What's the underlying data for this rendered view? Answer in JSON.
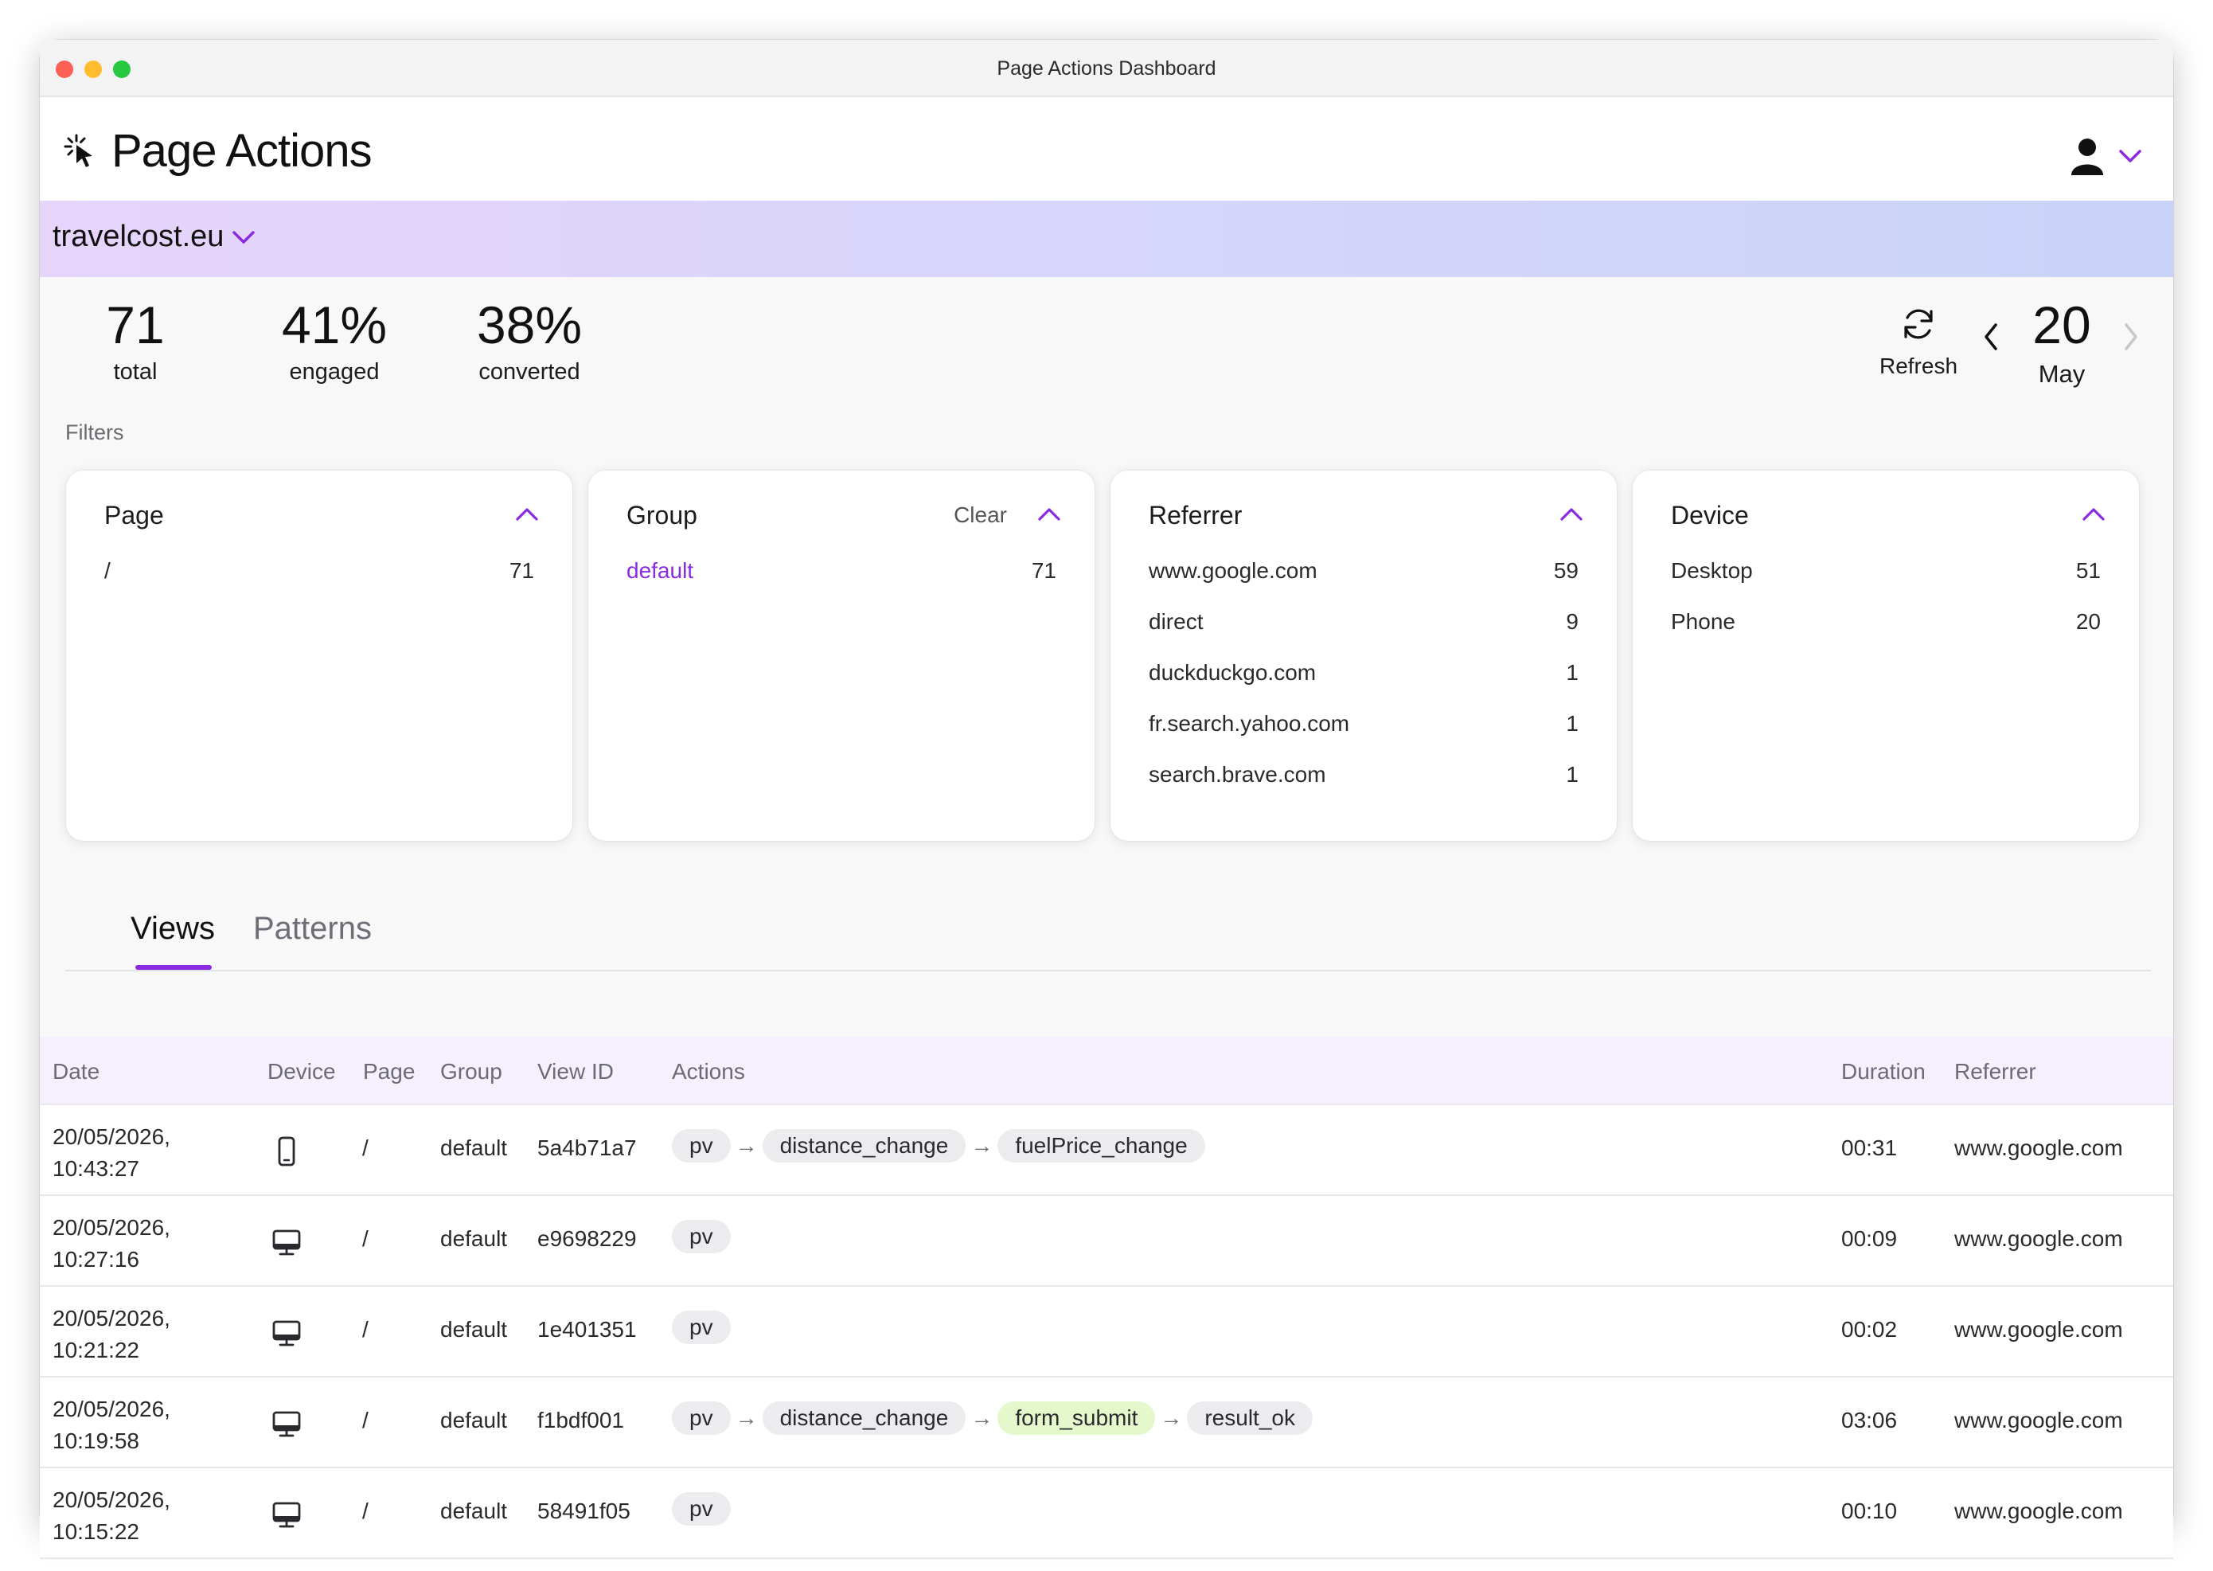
{
  "window": {
    "title": "Page Actions Dashboard"
  },
  "app": {
    "title": "Page Actions",
    "logo_icon": "cursor-click-icon",
    "user_icon": "user-icon"
  },
  "site": {
    "name": "travelcost.eu"
  },
  "stats": [
    {
      "value": "71",
      "label": "total"
    },
    {
      "value": "41%",
      "label": "engaged"
    },
    {
      "value": "38%",
      "label": "converted"
    }
  ],
  "controls": {
    "refresh_label": "Refresh",
    "date_day": "20",
    "date_month": "May"
  },
  "filters": {
    "label": "Filters",
    "cards": [
      {
        "title": "Page",
        "clear": "",
        "rows": [
          {
            "key": "/",
            "count": "71"
          }
        ]
      },
      {
        "title": "Group",
        "clear": "Clear",
        "rows": [
          {
            "key": "default",
            "count": "71"
          }
        ]
      },
      {
        "title": "Referrer",
        "clear": "",
        "rows": [
          {
            "key": "www.google.com",
            "count": "59"
          },
          {
            "key": "direct",
            "count": "9"
          },
          {
            "key": "duckduckgo.com",
            "count": "1"
          },
          {
            "key": "fr.search.yahoo.com",
            "count": "1"
          },
          {
            "key": "search.brave.com",
            "count": "1"
          }
        ]
      },
      {
        "title": "Device",
        "clear": "",
        "rows": [
          {
            "key": "Desktop",
            "count": "51"
          },
          {
            "key": "Phone",
            "count": "20"
          }
        ]
      }
    ]
  },
  "tabs": [
    {
      "label": "Views",
      "active": true
    },
    {
      "label": "Patterns",
      "active": false
    }
  ],
  "table": {
    "headers": {
      "date": "Date",
      "device": "Device",
      "page": "Page",
      "group": "Group",
      "view_id": "View ID",
      "actions": "Actions",
      "duration": "Duration",
      "referrer": "Referrer"
    },
    "rows": [
      {
        "date1": "20/05/2026,",
        "date2": "10:43:27",
        "device": "phone-icon",
        "page": "/",
        "group": "default",
        "view_id": "5a4b71a7",
        "actions": [
          "pv",
          "distance_change",
          "fuelPrice_change"
        ],
        "duration": "00:31",
        "referrer": "www.google.com"
      },
      {
        "date1": "20/05/2026,",
        "date2": "10:27:16",
        "device": "desktop-icon",
        "page": "/",
        "group": "default",
        "view_id": "e9698229",
        "actions": [
          "pv"
        ],
        "duration": "00:09",
        "referrer": "www.google.com"
      },
      {
        "date1": "20/05/2026,",
        "date2": "10:21:22",
        "device": "desktop-icon",
        "page": "/",
        "group": "default",
        "view_id": "1e401351",
        "actions": [
          "pv"
        ],
        "duration": "00:02",
        "referrer": "www.google.com"
      },
      {
        "date1": "20/05/2026,",
        "date2": "10:19:58",
        "device": "desktop-icon",
        "page": "/",
        "group": "default",
        "view_id": "f1bdf001",
        "actions": [
          "pv",
          "distance_change",
          "form_submit",
          "result_ok"
        ],
        "highlight": "form_submit",
        "duration": "03:06",
        "referrer": "www.google.com"
      },
      {
        "date1": "20/05/2026,",
        "date2": "10:15:22",
        "device": "desktop-icon",
        "page": "/",
        "group": "default",
        "view_id": "58491f05",
        "actions": [
          "pv"
        ],
        "duration": "00:10",
        "referrer": "www.google.com"
      }
    ]
  },
  "colors": {
    "accent": "#8a2be2",
    "chip": "#ececef",
    "chip_highlight": "#e4f8cc"
  }
}
